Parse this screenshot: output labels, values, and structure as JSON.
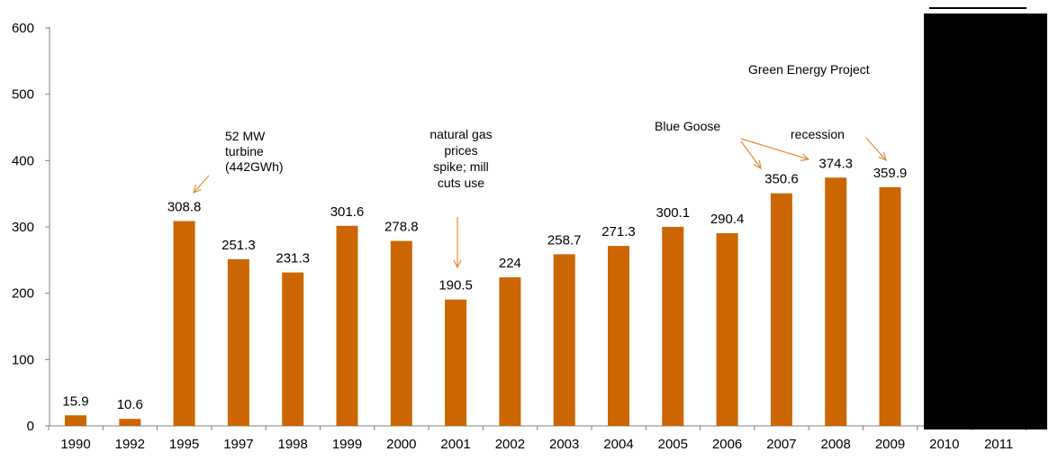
{
  "chart_data": {
    "type": "bar",
    "categories": [
      "1990",
      "1992",
      "1995",
      "1997",
      "1998",
      "1999",
      "2000",
      "2001",
      "2002",
      "2003",
      "2004",
      "2005",
      "2006",
      "2007",
      "2008",
      "2009",
      "2010",
      "2011"
    ],
    "values": [
      15.9,
      10.6,
      308.8,
      251.3,
      231.3,
      301.6,
      278.8,
      190.5,
      224,
      258.7,
      271.3,
      300.1,
      290.4,
      350.6,
      374.3,
      359.9,
      null,
      null
    ],
    "value_labels": [
      "15.9",
      "10.6",
      "308.8",
      "251.3",
      "231.3",
      "301.6",
      "278.8",
      "190.5",
      "224",
      "258.7",
      "271.3",
      "300.1",
      "290.4",
      "350.6",
      "374.3",
      "359.9",
      "",
      ""
    ],
    "ylim": [
      0,
      600
    ],
    "yticks": [
      "0",
      "100",
      "200",
      "300",
      "400",
      "500",
      "600"
    ],
    "grid": false,
    "bar_color": "#CC6600",
    "annotations": [
      {
        "lines": [
          "52 MW",
          "turbine",
          "(442GWh)"
        ]
      },
      {
        "lines": [
          "natural gas",
          "prices",
          "spike; mill",
          "cuts use"
        ]
      },
      {
        "lines": [
          "Blue Goose"
        ]
      },
      {
        "lines": [
          "recession"
        ]
      },
      {
        "lines": [
          "Green Energy Project"
        ]
      }
    ],
    "annotation_arrow_color": "#E08B3C",
    "redaction_color": "#000000"
  }
}
